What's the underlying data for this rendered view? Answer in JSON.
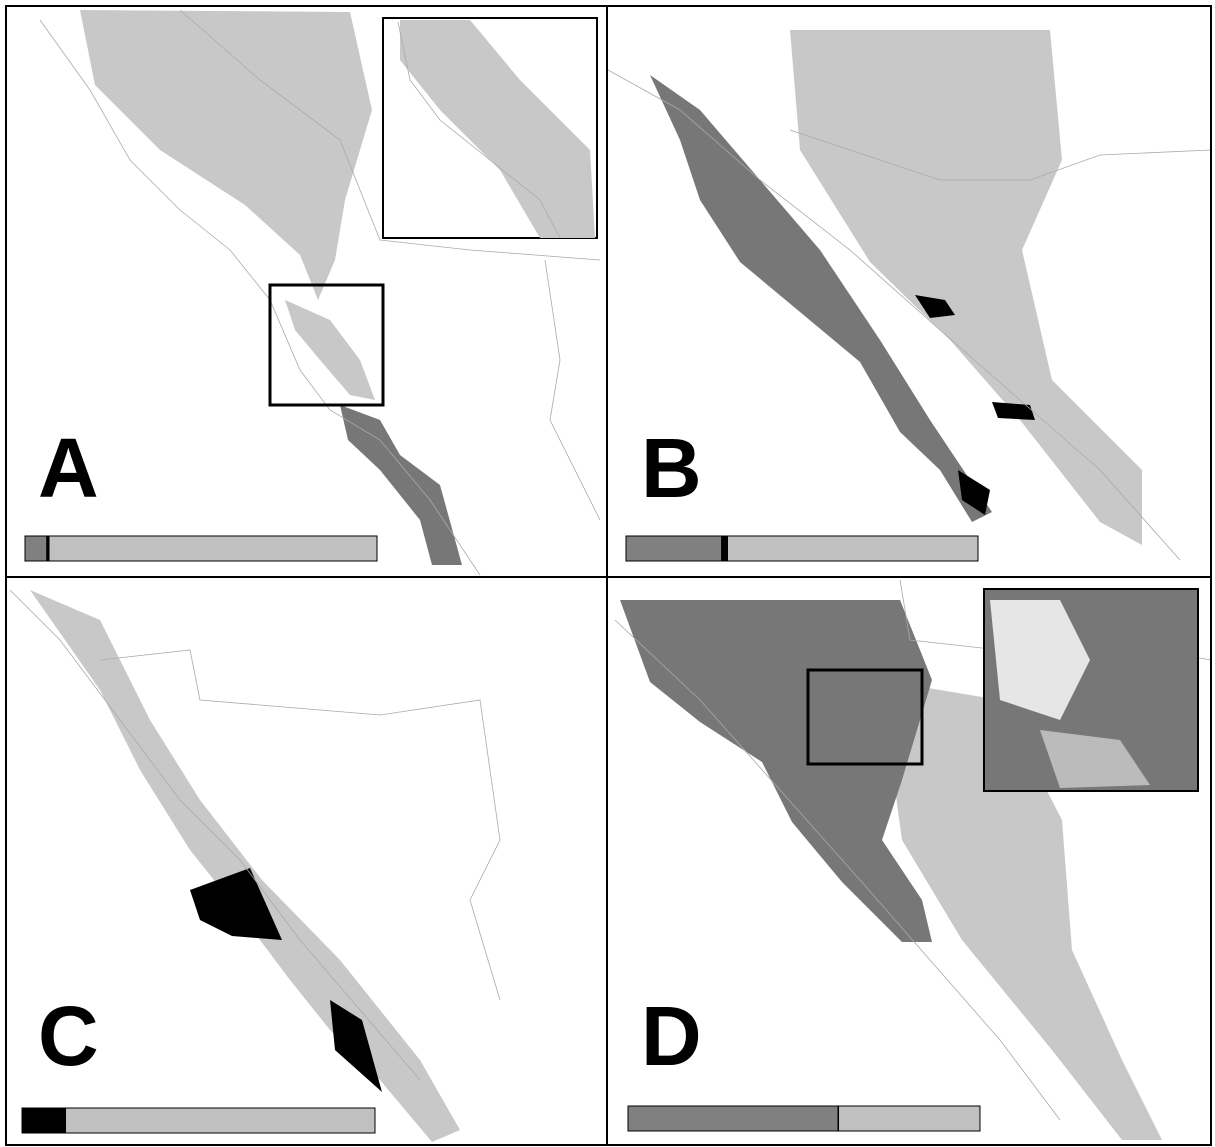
{
  "panels": [
    {
      "label": "A",
      "bar": [
        {
          "color": "#808080",
          "value": 6
        },
        {
          "color": "#000000",
          "value": 1
        },
        {
          "color": "#c0c0c0",
          "value": 93
        }
      ]
    },
    {
      "label": "B",
      "bar": [
        {
          "color": "#808080",
          "value": 27
        },
        {
          "color": "#000000",
          "value": 2
        },
        {
          "color": "#c0c0c0",
          "value": 71
        }
      ]
    },
    {
      "label": "C",
      "bar": [
        {
          "color": "#000000",
          "value": 12.5
        },
        {
          "color": "#c0c0c0",
          "value": 87.5
        }
      ]
    },
    {
      "label": "D",
      "bar": [
        {
          "color": "#808080",
          "value": 59.5
        },
        {
          "color": "#000000",
          "value": 0.5
        },
        {
          "color": "#c0c0c0",
          "value": 40
        }
      ]
    }
  ]
}
